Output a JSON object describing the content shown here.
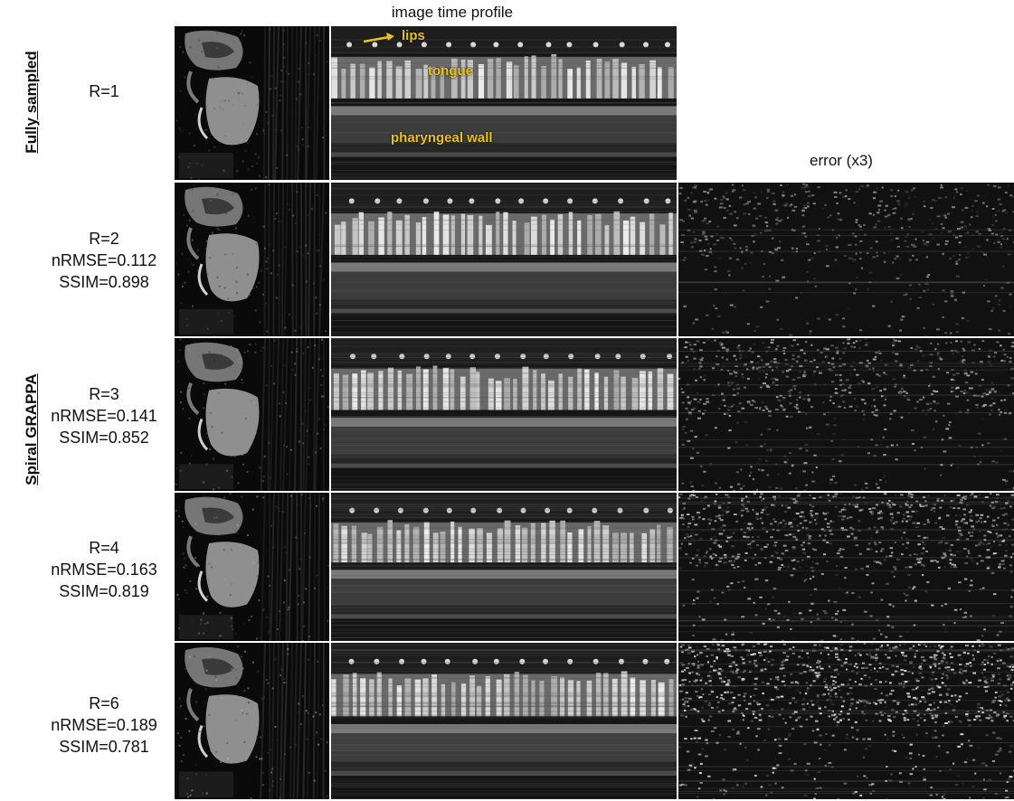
{
  "header": {
    "profile_title": "image time profile",
    "error_title": "error (x3)"
  },
  "groups": {
    "fully_sampled": "Fully sampled",
    "spiral_grappa": "Spiral GRAPPA"
  },
  "annotations": {
    "lips": "lips",
    "tongue": "tongue",
    "pharyngeal_wall": "pharyngeal wall"
  },
  "rows": [
    {
      "r": "R=1",
      "nrmse": "",
      "ssim": "",
      "error_level": 0
    },
    {
      "r": "R=2",
      "nrmse": "nRMSE=0.112",
      "ssim": "SSIM=0.898",
      "error_level": 0.25
    },
    {
      "r": "R=3",
      "nrmse": "nRMSE=0.141",
      "ssim": "SSIM=0.852",
      "error_level": 0.45
    },
    {
      "r": "R=4",
      "nrmse": "nRMSE=0.163",
      "ssim": "SSIM=0.819",
      "error_level": 0.6
    },
    {
      "r": "R=6",
      "nrmse": "nRMSE=0.189",
      "ssim": "SSIM=0.781",
      "error_level": 0.85
    }
  ],
  "colors": {
    "annotation": "#e8c21c",
    "separator": "#ffffff",
    "background": "#050505"
  }
}
